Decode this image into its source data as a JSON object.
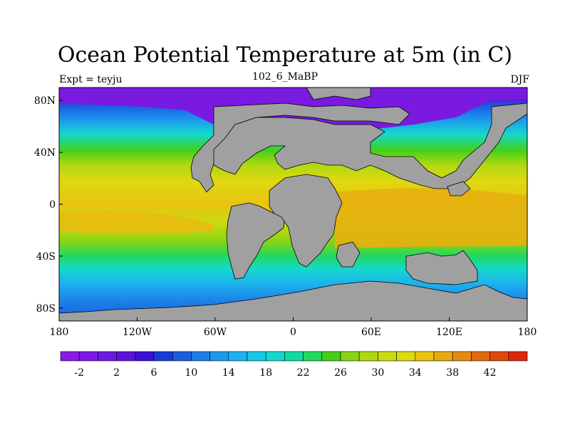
{
  "title": "Ocean Potential Temperature at 5m (in C)",
  "left_label": "Expt = teyju",
  "center_label": "102_6_MaBP",
  "right_label": "DJF",
  "x_ticks": [
    {
      "label": "180",
      "lon": -180
    },
    {
      "label": "120W",
      "lon": -120
    },
    {
      "label": "60W",
      "lon": -60
    },
    {
      "label": "0",
      "lon": 0
    },
    {
      "label": "60E",
      "lon": 60
    },
    {
      "label": "120E",
      "lon": 120
    },
    {
      "label": "180",
      "lon": 180
    }
  ],
  "y_ticks": [
    {
      "label": "80N",
      "lat": 80
    },
    {
      "label": "40N",
      "lat": 40
    },
    {
      "label": "0",
      "lat": 0
    },
    {
      "label": "40S",
      "lat": -40
    },
    {
      "label": "80S",
      "lat": -80
    }
  ],
  "colorbar": {
    "colors": [
      "#8b1ae6",
      "#7d18e6",
      "#6f17e3",
      "#5a14de",
      "#3a10d8",
      "#1a3cd6",
      "#1a5ee0",
      "#1c7ee8",
      "#1d9aee",
      "#1cb2ee",
      "#17c8e6",
      "#14d8cc",
      "#10dc9e",
      "#22d860",
      "#44d018",
      "#88d414",
      "#aed812",
      "#c8dc10",
      "#e0d810",
      "#e8c410",
      "#e6aa10",
      "#e48c10",
      "#e06a10",
      "#e0480e",
      "#e0260c"
    ],
    "labels": [
      "-2",
      "2",
      "6",
      "10",
      "14",
      "18",
      "22",
      "26",
      "30",
      "34",
      "38",
      "42"
    ],
    "label_start_box": 1,
    "label_step": 2
  },
  "colors": {
    "land": "#a0a0a0",
    "ocean_polar": "#7a1ae0"
  }
}
